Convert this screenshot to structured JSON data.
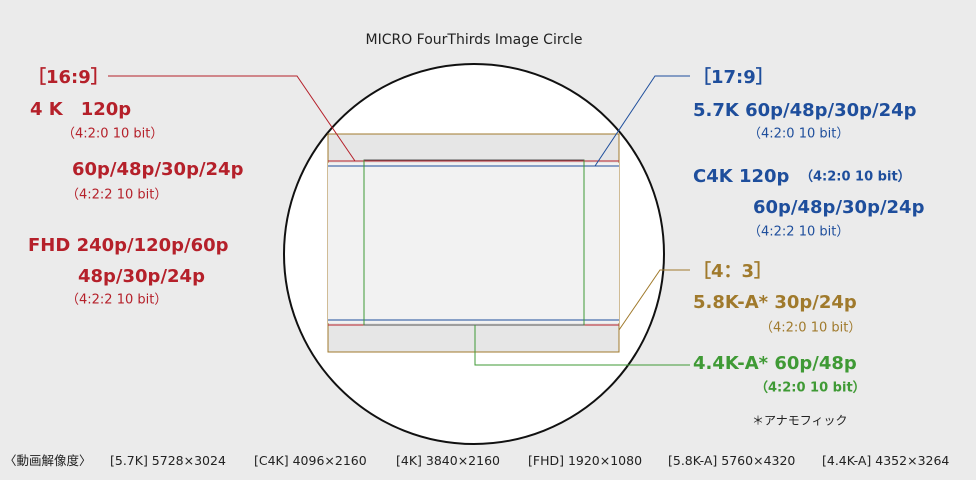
{
  "title": "MICRO FourThirds  Image Circle",
  "formats": [
    {
      "label": "［16:9］",
      "lines": [
        "4 K　120p",
        "（4:2:0 10 bit）",
        "60p/48p/30p/24p",
        "（4:2:2 10 bit）",
        "FHD  240p/120p/60p",
        "48p/30p/24p",
        "（4:2:2 10 bit）"
      ]
    },
    {
      "label": "［17:9］",
      "lines": [
        "5.7K  60p/48p/30p/24p",
        "（4:2:0 10 bit）",
        "C4K  120p",
        "（4:2:0 10 bit）",
        "60p/48p/30p/24p",
        "（4:2:2 10 bit）"
      ]
    },
    {
      "label": "［4：3］",
      "lines": [
        "5.8K-A* 30p/24p",
        "（4:2:0 10 bit）"
      ]
    },
    {
      "lines": [
        "4.4K-A* 60p/48p",
        "（4:2:0 10 bit）"
      ]
    }
  ],
  "note": "＊アナモフィック",
  "footer": {
    "label": "〈動画解像度〉",
    "items": [
      "[5.7K] 5728×3024",
      "[C4K] 4096×2160",
      "[4K] 3840×2160",
      "[FHD] 1920×1080",
      "[5.8K-A] 5760×4320",
      "[4.4K-A] 4352×3264"
    ]
  }
}
